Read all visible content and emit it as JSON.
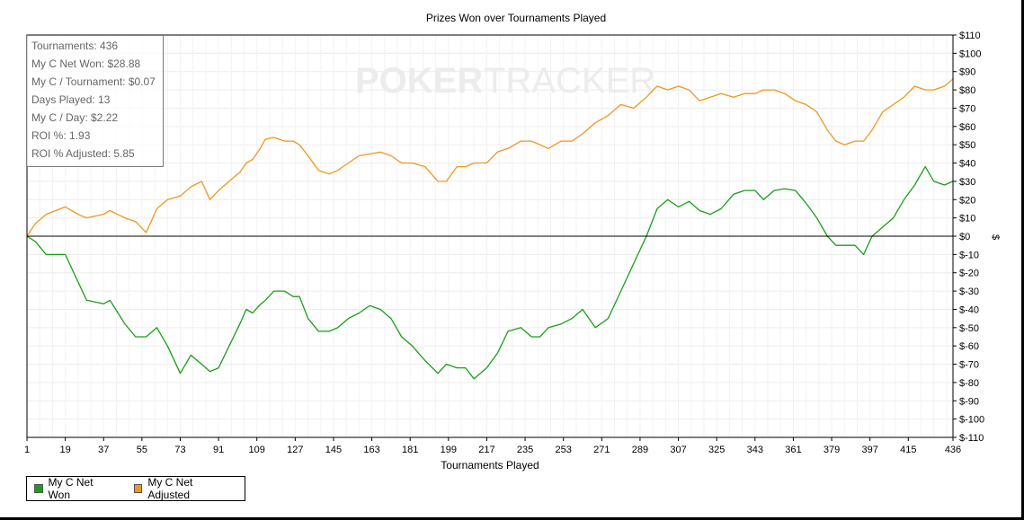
{
  "chart_data": {
    "type": "line",
    "title": "Prizes Won over Tournaments Played",
    "xlabel": "Tournaments Played",
    "ylabel": "$",
    "xlim": [
      1,
      436
    ],
    "ylim": [
      -110,
      110
    ],
    "x_ticks": [
      "1",
      "19",
      "37",
      "55",
      "73",
      "91",
      "109",
      "127",
      "145",
      "163",
      "181",
      "199",
      "217",
      "235",
      "253",
      "271",
      "289",
      "307",
      "325",
      "343",
      "361",
      "379",
      "397",
      "415",
      "436"
    ],
    "y_ticks": [
      "$110",
      "$100",
      "$90",
      "$80",
      "$70",
      "$60",
      "$50",
      "$40",
      "$30",
      "$20",
      "$10",
      "$0",
      "$-10",
      "$-20",
      "$-30",
      "$-40",
      "$-50",
      "$-60",
      "$-70",
      "$-80",
      "$-90",
      "$-100",
      "$-110"
    ],
    "grid": true,
    "legend_position": "bottom-left",
    "series": [
      {
        "name": "My C Net Won",
        "color": "#1a9e1a",
        "x": [
          1,
          5,
          10,
          19,
          25,
          29,
          37,
          40,
          47,
          52,
          57,
          62,
          67,
          73,
          78,
          83,
          87,
          91,
          96,
          101,
          104,
          107,
          110,
          113,
          117,
          122,
          126,
          129,
          133,
          138,
          143,
          147,
          152,
          157,
          162,
          167,
          172,
          177,
          182,
          188,
          194,
          198,
          203,
          207,
          211,
          217,
          222,
          227,
          233,
          238,
          242,
          246,
          252,
          257,
          262,
          268,
          274,
          280,
          286,
          292,
          297,
          302,
          307,
          312,
          317,
          322,
          327,
          333,
          338,
          343,
          347,
          352,
          357,
          362,
          367,
          372,
          377,
          381,
          385,
          390,
          394,
          398,
          403,
          408,
          413,
          418,
          423,
          427,
          432,
          436
        ],
        "y": [
          0,
          -3,
          -10,
          -10,
          -25,
          -35,
          -37,
          -35,
          -48,
          -55,
          -55,
          -50,
          -60,
          -75,
          -65,
          -70,
          -74,
          -72,
          -60,
          -48,
          -40,
          -42,
          -38,
          -35,
          -30,
          -30,
          -33,
          -33,
          -45,
          -52,
          -52,
          -50,
          -45,
          -42,
          -38,
          -40,
          -45,
          -55,
          -60,
          -68,
          -75,
          -70,
          -72,
          -72,
          -78,
          -72,
          -64,
          -52,
          -50,
          -55,
          -55,
          -50,
          -48,
          -45,
          -40,
          -50,
          -45,
          -30,
          -15,
          0,
          15,
          20,
          16,
          19,
          14,
          12,
          15,
          23,
          25,
          25,
          20,
          25,
          26,
          25,
          18,
          10,
          0,
          -5,
          -5,
          -5,
          -10,
          0,
          5,
          10,
          20,
          28,
          38,
          30,
          28,
          30
        ]
      },
      {
        "name": "My C Net Adjusted",
        "color": "#f0961e",
        "x": [
          1,
          5,
          10,
          19,
          25,
          29,
          37,
          40,
          47,
          52,
          57,
          62,
          67,
          73,
          78,
          83,
          87,
          91,
          96,
          101,
          104,
          107,
          110,
          113,
          117,
          122,
          126,
          129,
          133,
          138,
          143,
          147,
          152,
          157,
          162,
          167,
          172,
          177,
          182,
          188,
          194,
          198,
          203,
          207,
          211,
          217,
          222,
          227,
          233,
          238,
          242,
          246,
          252,
          257,
          262,
          268,
          274,
          280,
          286,
          292,
          297,
          302,
          307,
          312,
          317,
          322,
          327,
          333,
          338,
          343,
          347,
          352,
          357,
          362,
          367,
          372,
          377,
          381,
          385,
          390,
          394,
          398,
          403,
          408,
          413,
          418,
          423,
          427,
          432,
          436
        ],
        "y": [
          0,
          7,
          12,
          16,
          12,
          10,
          12,
          14,
          10,
          8,
          2,
          15,
          20,
          22,
          27,
          30,
          20,
          25,
          30,
          35,
          40,
          42,
          47,
          53,
          54,
          52,
          52,
          50,
          44,
          36,
          34,
          36,
          40,
          44,
          45,
          46,
          44,
          40,
          40,
          38,
          30,
          30,
          38,
          38,
          40,
          40,
          46,
          48,
          52,
          52,
          50,
          48,
          52,
          52,
          56,
          62,
          66,
          72,
          70,
          76,
          82,
          80,
          82,
          80,
          74,
          76,
          78,
          76,
          78,
          78,
          80,
          80,
          78,
          74,
          72,
          68,
          58,
          52,
          50,
          52,
          52,
          58,
          68,
          72,
          76,
          82,
          80,
          80,
          82,
          86
        ]
      }
    ]
  },
  "stats": [
    "Tournaments: 436",
    "My C Net Won: $28.88",
    "My C / Tournament: $0.07",
    "Days Played: 13",
    "My C / Day: $2.22",
    "ROI %: 1.93",
    "ROI % Adjusted: 5.85"
  ],
  "watermark": {
    "poker": "POKER",
    "tracker": "TRACKER"
  }
}
